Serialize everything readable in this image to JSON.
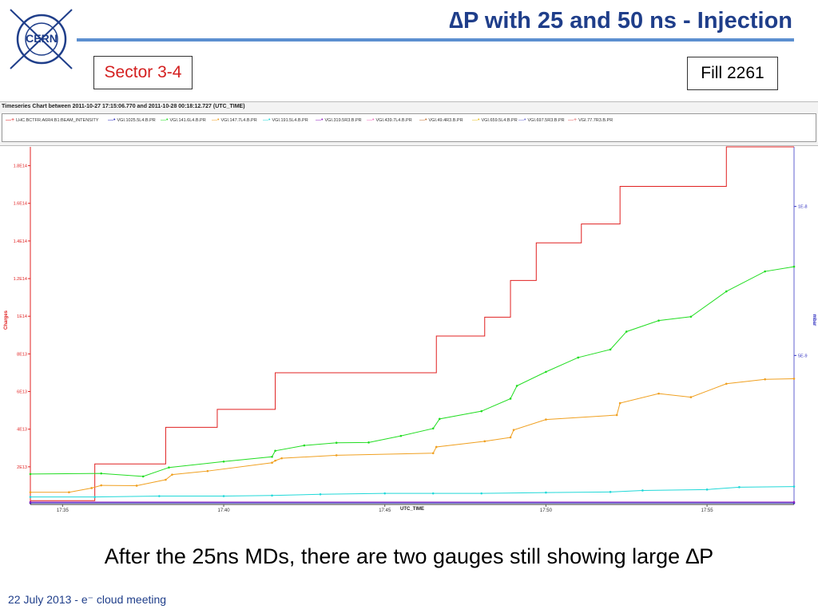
{
  "slide": {
    "logo_text": "CERN",
    "title": "∆P with 25 and 50 ns - Injection",
    "sector_label": "Sector 3-4",
    "fill_label": "Fill 2261",
    "caption": "After the 25ns MDs, there are two gauges still showing large ∆P",
    "footer": "22 July 2013  -  e⁻ cloud meeting"
  },
  "colors": {
    "title": "#1f3e8a",
    "title_line": "#5b8fd0",
    "sector_text": "#d42020"
  },
  "chart_data": {
    "type": "line",
    "title": "Timeseries Chart between 2011-10-27 17:15:06.770 and 2011-10-28 00:18:12.727 (UTC_TIME)",
    "xlabel": "UTC_TIME",
    "ylabel_left": "Charges",
    "ylabel_right": "mbar",
    "x_ticks": [
      "17:35",
      "17:40",
      "17:45",
      "17:50",
      "17:55"
    ],
    "y_left_ticks": [
      "2E13",
      "4E13",
      "6E13",
      "8E13",
      "1E14",
      "1.2E14",
      "1.4E14",
      "1.6E14",
      "1.8E14"
    ],
    "y_right_ticks": [
      "5E-9",
      "1E-8"
    ],
    "xlim_minutes": [
      34,
      57.7
    ],
    "y_left_lim": [
      0,
      190000000000000.0
    ],
    "y_right_lim": [
      0,
      1.2e-08
    ],
    "legend_entries": [
      {
        "name": "LHC.BCTFR.A6R4.B1:BEAM_INTENSITY",
        "color": "#e02020",
        "marker": "+"
      },
      {
        "name": "VGI.1025.5L4.B.PR",
        "color": "#3030c0",
        "marker": "•"
      },
      {
        "name": "VGI.141.6L4.B.PR",
        "color": "#22dd22",
        "marker": "•"
      },
      {
        "name": "VGI.147.7L4.B.PR",
        "color": "#f0a020",
        "marker": "•"
      },
      {
        "name": "VGI.191.5L4.B.PR",
        "color": "#20d8d8",
        "marker": "•"
      },
      {
        "name": "VGI.319.5R3.B.PR",
        "color": "#9020c0",
        "marker": "•"
      },
      {
        "name": "VGI.439.7L4.B.PR",
        "color": "#f070c0",
        "marker": "•"
      },
      {
        "name": "VGI.49.4R3.B.PR",
        "color": "#c07030",
        "marker": "•"
      },
      {
        "name": "VGI.659.5L4.B.PR",
        "color": "#e8c020",
        "marker": "•"
      },
      {
        "name": "VGI.697.5R3.B.PR",
        "color": "#7070d0",
        "marker": "•"
      },
      {
        "name": "VGI.77.7R3.B.PR",
        "color": "#e06060",
        "marker": "+"
      }
    ],
    "series": [
      {
        "name": "LHC.BCTFR.A6R4.B1:BEAM_INTENSITY",
        "axis": "left",
        "color": "#e02020",
        "step": true,
        "x": [
          34,
          36.0,
          38.2,
          39.8,
          41.6,
          46.6,
          48.1,
          48.9,
          49.7,
          51.1,
          52.3,
          55.6,
          57.7
        ],
        "y": [
          2000000000000.0,
          21500000000000.0,
          41000000000000.0,
          50500000000000.0,
          70000000000000.0,
          89500000000000.0,
          99500000000000.0,
          119000000000000.0,
          139000000000000.0,
          149000000000000.0,
          169000000000000.0,
          190000000000000.0,
          190000000000000.0
        ]
      },
      {
        "name": "VGI.141.6L4.B.PR",
        "axis": "right",
        "color": "#22dd22",
        "step": false,
        "x": [
          34,
          36.2,
          37.5,
          38.3,
          40.0,
          41.5,
          41.6,
          42.5,
          43.5,
          44.5,
          45.5,
          46.5,
          46.7,
          48.0,
          48.9,
          49.1,
          50.0,
          51.0,
          52.0,
          52.5,
          53.5,
          54.5,
          55.6,
          56.8,
          57.7
        ],
        "y": [
          1.02e-09,
          1.04e-09,
          9.4e-10,
          1.24e-09,
          1.44e-09,
          1.6e-09,
          1.8e-09,
          1.98e-09,
          2.07e-09,
          2.08e-09,
          2.3e-09,
          2.55e-09,
          2.87e-09,
          3.13e-09,
          3.55e-09,
          3.98e-09,
          4.45e-09,
          4.93e-09,
          5.2e-09,
          5.8e-09,
          6.17e-09,
          6.3e-09,
          7.15e-09,
          7.82e-09,
          7.98e-09
        ]
      },
      {
        "name": "VGI.147.7L4.B.PR",
        "axis": "right",
        "color": "#f0a020",
        "step": false,
        "x": [
          34,
          35.2,
          35.9,
          36.2,
          37.3,
          38.2,
          38.4,
          39.5,
          41.5,
          41.6,
          41.8,
          43.5,
          46.5,
          46.6,
          48.1,
          48.9,
          49.0,
          50.0,
          52.2,
          52.3,
          53.5,
          54.5,
          55.6,
          56.8,
          57.7
        ],
        "y": [
          4.1e-10,
          4.1e-10,
          5.5e-10,
          6.4e-10,
          6.3e-10,
          8.3e-10,
          1e-09,
          1.12e-09,
          1.4e-09,
          1.47e-09,
          1.55e-09,
          1.65e-09,
          1.72e-09,
          1.93e-09,
          2.12e-09,
          2.25e-09,
          2.5e-09,
          2.85e-09,
          3e-09,
          3.4e-09,
          3.72e-09,
          3.6e-09,
          4.05e-09,
          4.2e-09,
          4.22e-09
        ]
      },
      {
        "name": "VGI.191.5L4.B.PR",
        "axis": "right",
        "color": "#20d8d8",
        "step": false,
        "x": [
          34,
          36.0,
          38.0,
          40.0,
          41.5,
          43.0,
          45.0,
          46.5,
          48.0,
          50.0,
          52.0,
          53.0,
          55.0,
          56.0,
          57.7
        ],
        "y": [
          2.5e-10,
          2.5e-10,
          2.8e-10,
          2.8e-10,
          3e-10,
          3.4e-10,
          3.7e-10,
          3.7e-10,
          3.7e-10,
          4e-10,
          4.2e-10,
          4.7e-10,
          5e-10,
          5.8e-10,
          6e-10
        ]
      },
      {
        "name": "VGI.1025.5L4.B.PR",
        "axis": "right",
        "color": "#3030c0",
        "step": false,
        "x": [
          34,
          57.7
        ],
        "y": [
          5e-11,
          5e-11
        ]
      },
      {
        "name": "VGI.319.5R3.B.PR",
        "axis": "right",
        "color": "#9020c0",
        "step": false,
        "x": [
          34,
          57.7
        ],
        "y": [
          8e-11,
          8e-11
        ]
      }
    ]
  }
}
